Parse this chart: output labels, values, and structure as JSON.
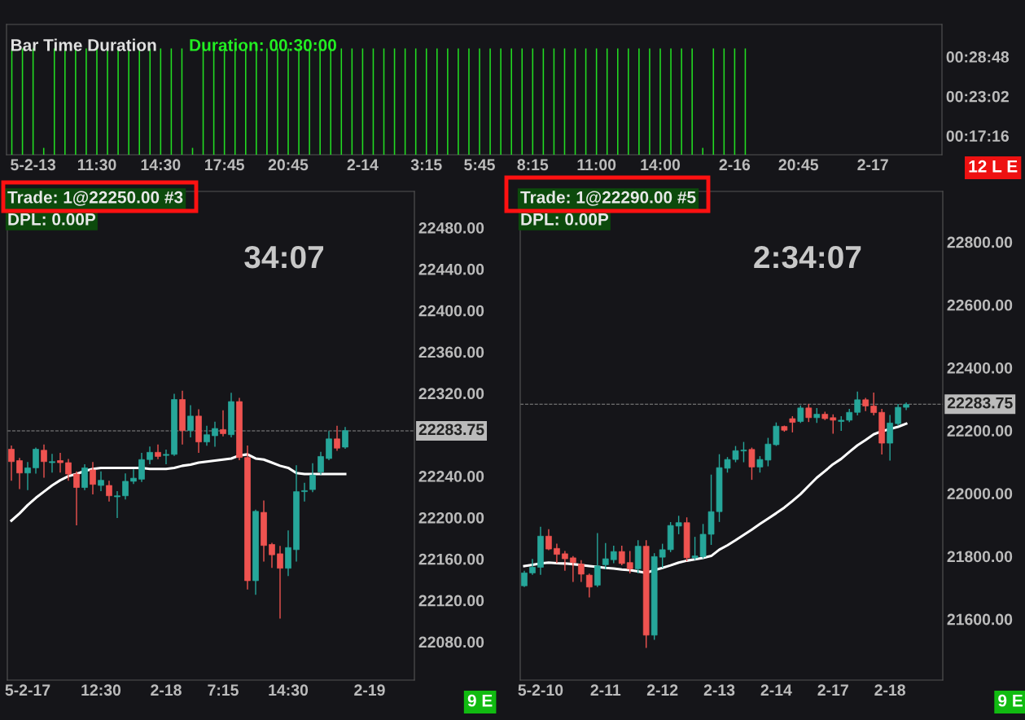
{
  "chart_data": [
    {
      "type": "bar",
      "title": "Bar Time Duration",
      "color": "#22dd22",
      "categories": [
        null,
        null,
        "5-2-13",
        null,
        null,
        null,
        null,
        null,
        "11:30",
        null,
        null,
        null,
        null,
        null,
        "14:30",
        null,
        null,
        null,
        null,
        null,
        "17:45",
        null,
        null,
        null,
        null,
        null,
        "20:45",
        null,
        null,
        null,
        null,
        null,
        null,
        "2-14",
        null,
        null,
        null,
        null,
        null,
        "3:15",
        null,
        null,
        null,
        null,
        "5:45",
        null,
        null,
        null,
        null,
        "8:15",
        null,
        null,
        null,
        null,
        null,
        "11:00",
        null,
        null,
        null,
        null,
        null,
        "14:00",
        null,
        null,
        null,
        null,
        null,
        null,
        "2-16",
        null,
        null,
        null,
        null,
        null,
        "20:45",
        null,
        null,
        null,
        null,
        null,
        null,
        "2-17",
        null,
        null,
        null,
        null,
        null,
        null
      ],
      "values": [
        30,
        30,
        30,
        15.5,
        30,
        30,
        30,
        30,
        30,
        30,
        30,
        30,
        30,
        30,
        30,
        30,
        30,
        15.5,
        30,
        30,
        30,
        30,
        30,
        30,
        30,
        30,
        30,
        30,
        30,
        30,
        30,
        30,
        30,
        30,
        30,
        30,
        30,
        30,
        30,
        30,
        30,
        30,
        30,
        30,
        30,
        30,
        30,
        30,
        30,
        30,
        30,
        30,
        30,
        30,
        30,
        30,
        30,
        30,
        30,
        30,
        30,
        30,
        30,
        30,
        30,
        15.5,
        30,
        30,
        30,
        30,
        null,
        null,
        null,
        null,
        null,
        null,
        null,
        null,
        null,
        null,
        null,
        null,
        null,
        null,
        null,
        null,
        null,
        null
      ],
      "ylim": [
        14.5,
        33.5
      ],
      "yticks": [
        {
          "value": 17.27,
          "label": "00:17:16"
        },
        {
          "value": 23.03,
          "label": "00:23:02"
        },
        {
          "value": 28.8,
          "label": "00:28:48"
        }
      ],
      "annotations": [
        "Duration: 00:30:00",
        "12 L E"
      ]
    },
    {
      "type": "candlestick",
      "categories": [
        null,
        null,
        "5-2-17",
        null,
        null,
        null,
        null,
        null,
        null,
        null,
        null,
        "12:30",
        null,
        null,
        null,
        null,
        null,
        null,
        null,
        "2-18",
        null,
        null,
        null,
        null,
        null,
        null,
        "7:15",
        null,
        null,
        null,
        null,
        null,
        null,
        null,
        "14:30",
        null,
        null,
        null,
        null,
        null,
        null,
        null,
        null,
        null,
        "2-19",
        null,
        null,
        null,
        null,
        null
      ],
      "ohlc": [
        [
          22266,
          22269,
          22236,
          22254
        ],
        [
          22255,
          22257,
          22228,
          22243
        ],
        [
          22243,
          22253,
          22227,
          22248
        ],
        [
          22248,
          22267,
          22243,
          22266
        ],
        [
          22265,
          22270,
          22239,
          22254
        ],
        [
          22253,
          22261,
          22244,
          22254
        ],
        [
          22255,
          22262,
          22244,
          22253
        ],
        [
          22253,
          22256,
          22236,
          22242
        ],
        [
          22242,
          22244,
          22193,
          22229
        ],
        [
          22229,
          22251,
          22227,
          22248
        ],
        [
          22246,
          22253,
          22223,
          22232
        ],
        [
          22231,
          22244,
          22226,
          22236
        ],
        [
          22231,
          22235,
          22216,
          22221
        ],
        [
          22220,
          22225,
          22200,
          22221
        ],
        [
          22221,
          22242,
          22218,
          22235
        ],
        [
          22235,
          22246,
          22233,
          22238
        ],
        [
          22237,
          22262,
          22235,
          22256
        ],
        [
          22256,
          22268,
          22252,
          22263
        ],
        [
          22263,
          22270,
          22257,
          22259
        ],
        [
          22260,
          22265,
          22252,
          22261
        ],
        [
          22261,
          22319,
          22260,
          22314
        ],
        [
          22314,
          22322,
          22271,
          22284
        ],
        [
          22284,
          22308,
          22278,
          22298
        ],
        [
          22298,
          22304,
          22263,
          22273
        ],
        [
          22273,
          22288,
          22270,
          22280
        ],
        [
          22279,
          22292,
          22269,
          22286
        ],
        [
          22285,
          22303,
          22279,
          22281
        ],
        [
          22280,
          22320,
          22278,
          22312
        ],
        [
          22312,
          22315,
          22256,
          22258
        ],
        [
          22258,
          22269,
          22131,
          22139
        ],
        [
          22139,
          22207,
          22126,
          22206
        ],
        [
          22205,
          22216,
          22158,
          22173
        ],
        [
          22174,
          22175,
          22152,
          22164
        ],
        [
          22165,
          22172,
          22103,
          22151
        ],
        [
          22151,
          22187,
          22144,
          22171
        ],
        [
          22169,
          22250,
          22158,
          22225
        ],
        [
          22225,
          22233,
          22216,
          22226
        ],
        [
          22227,
          22252,
          22225,
          22241
        ],
        [
          22244,
          22263,
          22242,
          22259
        ],
        [
          22257,
          22283,
          22256,
          22276
        ],
        [
          22276,
          22288,
          22265,
          22267
        ],
        [
          22268,
          22287,
          22267,
          22284
        ],
        null,
        null,
        null,
        null,
        null,
        null,
        null,
        null
      ],
      "series": [
        {
          "type": "line",
          "color": "#ffffff",
          "values": [
            22197,
            22204,
            22212,
            22219,
            22225,
            22231,
            22236,
            22240,
            22242,
            22245,
            22247,
            22248,
            22248,
            22248,
            22248,
            22248,
            22248,
            22247,
            22247,
            22247,
            22248,
            22250,
            22251,
            22253,
            22254,
            22255,
            22256,
            22257,
            22260,
            22261,
            22257,
            22256,
            22253,
            22250,
            22248,
            22243,
            22242,
            22242,
            22242,
            22242,
            22242,
            22242,
            null,
            null,
            null,
            null,
            null,
            null,
            null,
            null
          ]
        }
      ],
      "ylim": [
        22043,
        22515
      ],
      "yticks": [
        {
          "value": 22080,
          "label": "22080.00"
        },
        {
          "value": 22120,
          "label": "22120.00"
        },
        {
          "value": 22160,
          "label": "22160.00"
        },
        {
          "value": 22200,
          "label": "22200.00"
        },
        {
          "value": 22240,
          "label": "22240.00"
        },
        {
          "value": 22320,
          "label": "22320.00"
        },
        {
          "value": 22360,
          "label": "22360.00"
        },
        {
          "value": 22400,
          "label": "22400.00"
        },
        {
          "value": 22440,
          "label": "22440.00"
        },
        {
          "value": 22480,
          "label": "22480.00"
        }
      ],
      "ref_lines": [
        {
          "axis": "y",
          "value": 22283.75,
          "label": "22283.75",
          "color": "#888888",
          "line_style": "dashed"
        }
      ],
      "annotations": [
        "Trade: 1@22250.00 #3",
        "DPL: 0.00P",
        "34:07",
        "9 E"
      ]
    },
    {
      "type": "candlestick",
      "categories": [
        null,
        null,
        "5-2-10",
        null,
        null,
        null,
        null,
        null,
        null,
        null,
        "2-11",
        null,
        null,
        null,
        null,
        null,
        null,
        "2-12",
        null,
        null,
        null,
        null,
        null,
        null,
        "2-13",
        null,
        null,
        null,
        null,
        null,
        null,
        "2-14",
        null,
        null,
        null,
        null,
        null,
        null,
        "2-17",
        null,
        null,
        null,
        null,
        null,
        null,
        "2-18",
        null,
        null,
        null,
        null,
        null,
        null
      ],
      "ohlc": [
        [
          21706,
          21752,
          21704,
          21747
        ],
        [
          21747,
          21790,
          21743,
          21765
        ],
        [
          21765,
          21892,
          21743,
          21864
        ],
        [
          21864,
          21884,
          21821,
          21823
        ],
        [
          21825,
          21838,
          21780,
          21806
        ],
        [
          21808,
          21815,
          21756,
          21792
        ],
        [
          21795,
          21799,
          21720,
          21780
        ],
        [
          21775,
          21786,
          21720,
          21743
        ],
        [
          21740,
          21743,
          21671,
          21702
        ],
        [
          21708,
          21872,
          21704,
          21769
        ],
        [
          21773,
          21840,
          21760,
          21792
        ],
        [
          21789,
          21832,
          21780,
          21815
        ],
        [
          21815,
          21832,
          21773,
          21777
        ],
        [
          21780,
          21815,
          21747,
          21760
        ],
        [
          21760,
          21849,
          21747,
          21832
        ],
        [
          21832,
          21849,
          21510,
          21549
        ],
        [
          21549,
          21808,
          21536,
          21799
        ],
        [
          21797,
          21838,
          21765,
          21821
        ],
        [
          21821,
          21907,
          21815,
          21898
        ],
        [
          21896,
          21927,
          21872,
          21907
        ],
        [
          21907,
          21922,
          21786,
          21795
        ],
        [
          21795,
          21860,
          21790,
          21801
        ],
        [
          21799,
          21901,
          21795,
          21870
        ],
        [
          21870,
          22058,
          21838,
          21942
        ],
        [
          21942,
          22123,
          21911,
          22082
        ],
        [
          22080,
          22114,
          22068,
          22108
        ],
        [
          22108,
          22149,
          22101,
          22136
        ],
        [
          22135,
          22162,
          22101,
          22138
        ],
        [
          22140,
          22144,
          22045,
          22084
        ],
        [
          22084,
          22117,
          22068,
          22108
        ],
        [
          22106,
          22175,
          22088,
          22157
        ],
        [
          22155,
          22224,
          22153,
          22214
        ],
        [
          22213,
          22214,
          22198,
          22201
        ],
        [
          22238,
          22244,
          22196,
          22226
        ],
        [
          22229,
          22278,
          22226,
          22272
        ],
        [
          22272,
          22283,
          22229,
          22241
        ],
        [
          22241,
          22270,
          22226,
          22252
        ],
        [
          22252,
          22258,
          22235,
          22238
        ],
        [
          22241,
          22250,
          22192,
          22233
        ],
        [
          22229,
          22244,
          22201,
          22233
        ],
        [
          22233,
          22267,
          22229,
          22258
        ],
        [
          22258,
          22322,
          22250,
          22298
        ],
        [
          22298,
          22302,
          22264,
          22278
        ],
        [
          22278,
          22319,
          22250,
          22257
        ],
        [
          22258,
          22267,
          22126,
          22160
        ],
        [
          22160,
          22248,
          22106,
          22224
        ],
        [
          22222,
          22283,
          22218,
          22274
        ],
        [
          22274,
          22287,
          22267,
          22283
        ],
        null,
        null,
        null,
        null
      ],
      "series": [
        {
          "type": "line",
          "color": "#ffffff",
          "values": [
            21769,
            21773,
            21777,
            21780,
            21778,
            21777,
            21775,
            21772,
            21769,
            21766,
            21763,
            21761,
            21758,
            21756,
            21752,
            21747,
            21756,
            21763,
            21771,
            21780,
            21786,
            21790,
            21795,
            21801,
            21821,
            21835,
            21851,
            21868,
            21885,
            21903,
            21920,
            21937,
            21955,
            21976,
            21998,
            22024,
            22050,
            22071,
            22093,
            22110,
            22132,
            22153,
            22170,
            22188,
            22198,
            22205,
            22212,
            22222,
            null,
            null,
            null,
            null
          ]
        }
      ],
      "ylim": [
        21406,
        22961
      ],
      "yticks": [
        {
          "value": 21600,
          "label": "21600.00"
        },
        {
          "value": 21800,
          "label": "21800.00"
        },
        {
          "value": 22000,
          "label": "22000.00"
        },
        {
          "value": 22200,
          "label": "22200.00"
        },
        {
          "value": 22400,
          "label": "22400.00"
        },
        {
          "value": 22600,
          "label": "22600.00"
        },
        {
          "value": 22800,
          "label": "22800.00"
        }
      ],
      "ref_lines": [
        {
          "axis": "y",
          "value": 22283.75,
          "label": "22283.75",
          "color": "#888888",
          "line_style": "dashed"
        }
      ],
      "annotations": [
        "Trade: 1@22290.00 #5",
        "DPL: 0.00P",
        "2:34:07",
        "9 E"
      ]
    }
  ]
}
